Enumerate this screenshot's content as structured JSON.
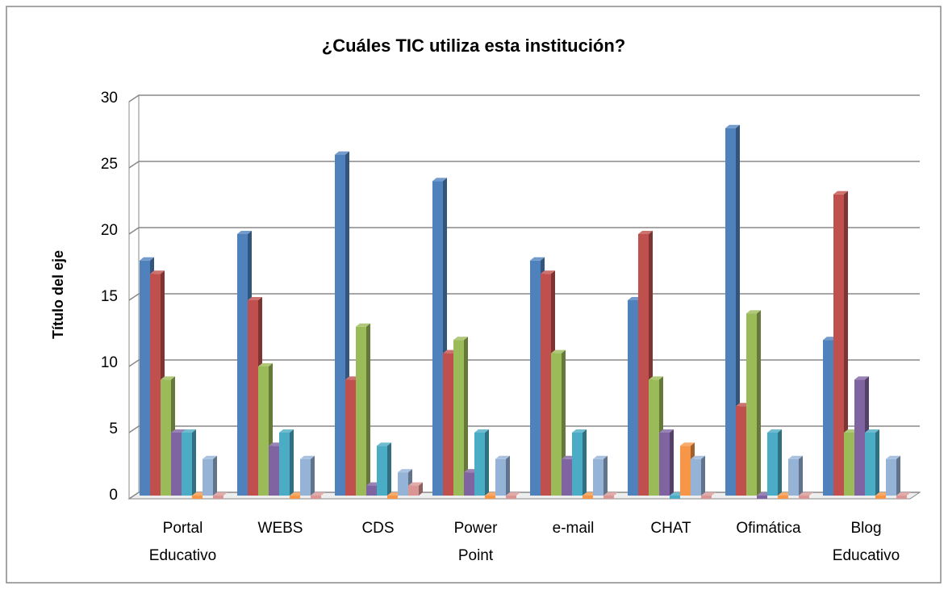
{
  "chart_data": {
    "type": "bar3d",
    "title": "¿Cuáles TIC utiliza esta institución?",
    "y_label": "Título del eje",
    "categories": [
      "Portal Educativo",
      "WEBS",
      "CDS",
      "Power Point",
      "e-mail",
      "CHAT",
      "Ofimática",
      "Blog Educativo"
    ],
    "series": [
      {
        "color": "#4f81bd",
        "values": [
          18,
          20,
          26,
          24,
          18,
          15,
          28,
          12
        ]
      },
      {
        "color": "#c0504d",
        "values": [
          17,
          15,
          9,
          11,
          17,
          20,
          7,
          23
        ]
      },
      {
        "color": "#9bbb59",
        "values": [
          9,
          10,
          13,
          12,
          11,
          9,
          14,
          5
        ]
      },
      {
        "color": "#8064a2",
        "values": [
          5,
          4,
          1,
          2,
          3,
          5,
          0,
          9
        ]
      },
      {
        "color": "#4bacc6",
        "values": [
          5,
          5,
          4,
          5,
          5,
          0,
          5,
          5
        ]
      },
      {
        "color": "#f79646",
        "values": [
          0,
          0,
          0,
          0,
          0,
          4,
          0,
          0
        ]
      },
      {
        "color": "#95b3d7",
        "values": [
          3,
          3,
          2,
          3,
          3,
          3,
          3,
          3
        ]
      },
      {
        "color": "#d99694",
        "values": [
          0,
          0,
          1,
          0,
          0,
          0,
          0,
          0
        ]
      }
    ],
    "ylim": [
      0,
      30
    ],
    "yticks": [
      0,
      5,
      10,
      15,
      20,
      25,
      30
    ],
    "grid": true
  }
}
